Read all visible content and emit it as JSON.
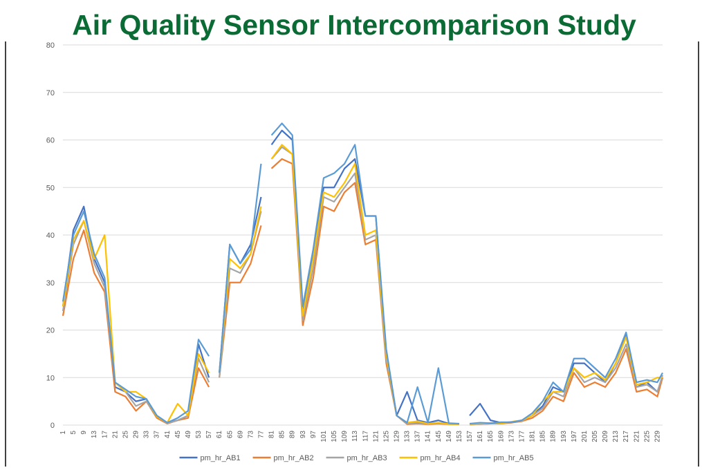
{
  "chart_data": {
    "type": "line",
    "title": "Air Quality Sensor Intercomparison Study",
    "x": [
      1,
      5,
      9,
      13,
      17,
      21,
      25,
      29,
      33,
      37,
      41,
      45,
      49,
      53,
      57,
      59,
      61,
      65,
      69,
      73,
      77,
      79,
      81,
      85,
      89,
      93,
      97,
      101,
      105,
      109,
      113,
      117,
      121,
      125,
      129,
      133,
      137,
      141,
      145,
      149,
      153,
      155,
      157,
      161,
      165,
      169,
      173,
      177,
      181,
      185,
      189,
      193,
      197,
      201,
      205,
      209,
      213,
      217,
      221,
      225,
      229,
      231
    ],
    "xlim": [
      1,
      231
    ],
    "xticks": [
      1,
      5,
      9,
      13,
      17,
      21,
      25,
      29,
      33,
      37,
      41,
      45,
      49,
      53,
      57,
      61,
      65,
      69,
      73,
      77,
      81,
      85,
      89,
      93,
      97,
      101,
      105,
      109,
      113,
      117,
      121,
      125,
      129,
      133,
      137,
      141,
      145,
      149,
      153,
      157,
      161,
      165,
      169,
      173,
      177,
      181,
      185,
      189,
      193,
      197,
      201,
      205,
      209,
      213,
      217,
      221,
      225,
      229
    ],
    "ylim": [
      0,
      80
    ],
    "yticks": [
      0,
      10,
      20,
      30,
      40,
      50,
      60,
      70,
      80
    ],
    "grid": true,
    "legend": "bottom",
    "series": [
      {
        "name": "pm_hr_AB1",
        "color": "#4472c4",
        "values": [
          25,
          41,
          46,
          35,
          30,
          8,
          7,
          5,
          5.5,
          2,
          0.5,
          1,
          2,
          17,
          10,
          null,
          11,
          38,
          34,
          38,
          48,
          null,
          59,
          62,
          60,
          24,
          36,
          50,
          50,
          54,
          56,
          44,
          44,
          15,
          2,
          7,
          1,
          0.5,
          1,
          0.3,
          0.2,
          null,
          2,
          4.5,
          1,
          0.5,
          0.5,
          1,
          2,
          4,
          8,
          7,
          13,
          13,
          11,
          9,
          13,
          19,
          8,
          9,
          7,
          10
        ]
      },
      {
        "name": "pm_hr_AB2",
        "color": "#ed7d31",
        "values": [
          23,
          35,
          41,
          32,
          28,
          7,
          6,
          3,
          5,
          1.5,
          0.3,
          1,
          1.5,
          12,
          8,
          null,
          10,
          30,
          30,
          34,
          42,
          null,
          54,
          56,
          55,
          21,
          31,
          46,
          45,
          49,
          51,
          38,
          39,
          13,
          2,
          0.2,
          0.3,
          0.2,
          0.3,
          0.2,
          0.2,
          null,
          0.1,
          0.2,
          0.3,
          0.3,
          0.5,
          0.8,
          1.5,
          3,
          6,
          5,
          11,
          8,
          9,
          8,
          11,
          16,
          7,
          7.5,
          6,
          10
        ]
      },
      {
        "name": "pm_hr_AB3",
        "color": "#a5a5a5",
        "values": [
          24,
          38,
          43,
          34,
          29,
          9,
          7,
          4,
          5,
          1.8,
          0.4,
          1,
          2,
          14,
          9,
          null,
          10,
          33,
          32,
          36,
          45,
          null,
          56,
          58.5,
          57,
          22,
          33,
          48,
          47,
          50,
          53,
          39,
          40,
          14,
          2,
          0.3,
          0.5,
          0.3,
          0.5,
          0.2,
          0.2,
          null,
          0.1,
          0.2,
          0.3,
          0.4,
          0.6,
          0.9,
          2,
          3.5,
          7,
          6,
          12,
          9,
          10,
          9,
          12,
          17,
          8,
          8.5,
          7,
          10.5
        ]
      },
      {
        "name": "pm_hr_AB4",
        "color": "#ffc000",
        "values": [
          25,
          39,
          43,
          35,
          40,
          9,
          7,
          7,
          5.5,
          1.8,
          0.5,
          4.5,
          2,
          15,
          11,
          null,
          11,
          35,
          33,
          36,
          46,
          null,
          56,
          59,
          57,
          23,
          35,
          49,
          48,
          51,
          55,
          40,
          41,
          15,
          2,
          0.5,
          0.8,
          0.3,
          0.5,
          0.2,
          0.2,
          null,
          0.2,
          0.3,
          0.4,
          0.4,
          0.7,
          1,
          2,
          5,
          7,
          7,
          12,
          10,
          11,
          9.5,
          13,
          18.5,
          8.5,
          9,
          10,
          10
        ]
      },
      {
        "name": "pm_hr_AB5",
        "color": "#5b9bd5",
        "values": [
          26,
          40,
          45,
          36,
          31,
          9,
          7.5,
          6,
          5.5,
          2,
          0.5,
          1.5,
          3,
          18,
          14.5,
          null,
          11,
          38,
          34,
          37,
          55,
          null,
          61,
          63.5,
          61,
          25,
          37,
          52,
          53,
          55,
          59,
          44,
          44,
          16,
          2,
          0.5,
          8,
          0.5,
          12,
          0.4,
          0.3,
          null,
          0.3,
          0.5,
          0.4,
          0.6,
          0.6,
          1,
          2.5,
          5,
          9,
          7,
          14,
          14,
          12,
          10,
          14,
          19.5,
          9,
          9.5,
          9,
          11
        ]
      }
    ]
  }
}
